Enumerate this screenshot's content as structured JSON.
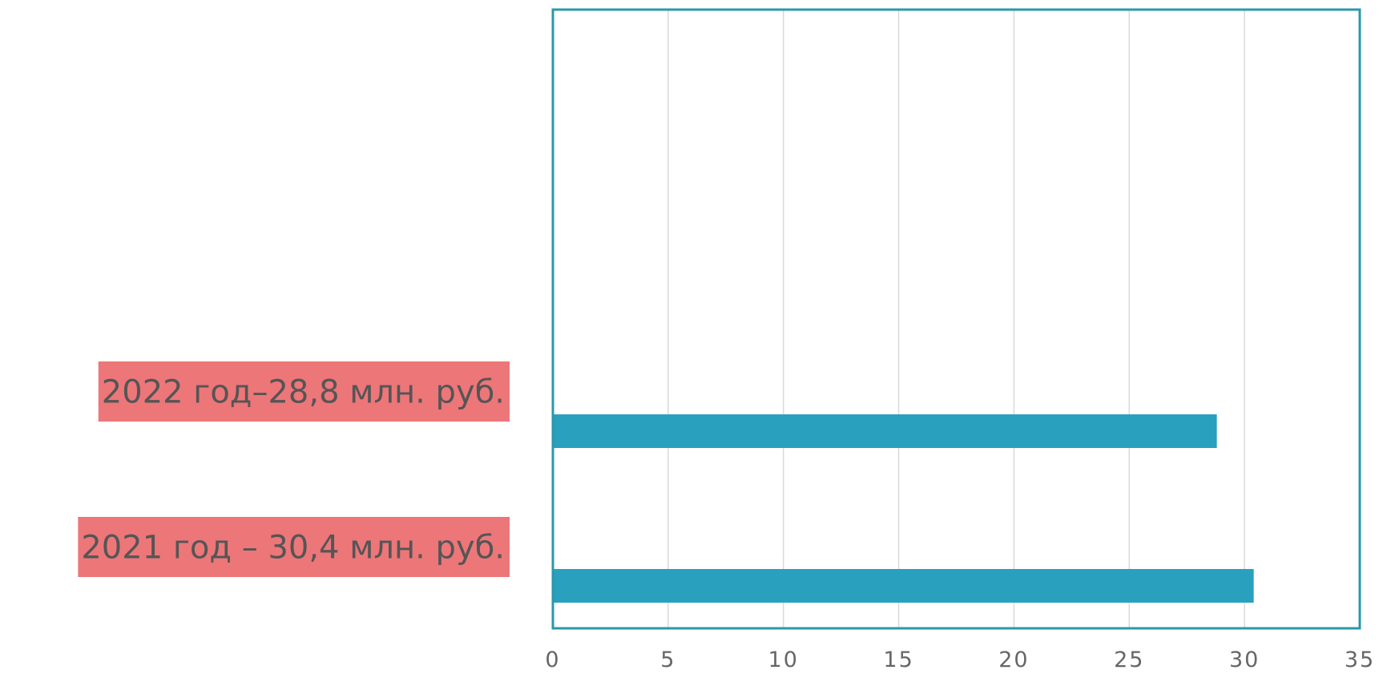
{
  "colors": {
    "bar": "#2aa0bf",
    "frame": "#2b98a8",
    "gridline": "#d9d9d9",
    "label_highlight": "#ed7679",
    "label_text": "#555555",
    "tick_text": "#666666"
  },
  "chart_data": {
    "type": "bar",
    "orientation": "horizontal",
    "categories": [
      "2021 год – 30,4 млн. руб.",
      "2022 год–28,8 млн. руб."
    ],
    "values": [
      30.4,
      28.8
    ],
    "xlim": [
      0,
      35
    ],
    "xticks": [
      0,
      5,
      10,
      15,
      20,
      25,
      30,
      35
    ],
    "grid": true,
    "title": "",
    "xlabel": "",
    "ylabel": ""
  }
}
